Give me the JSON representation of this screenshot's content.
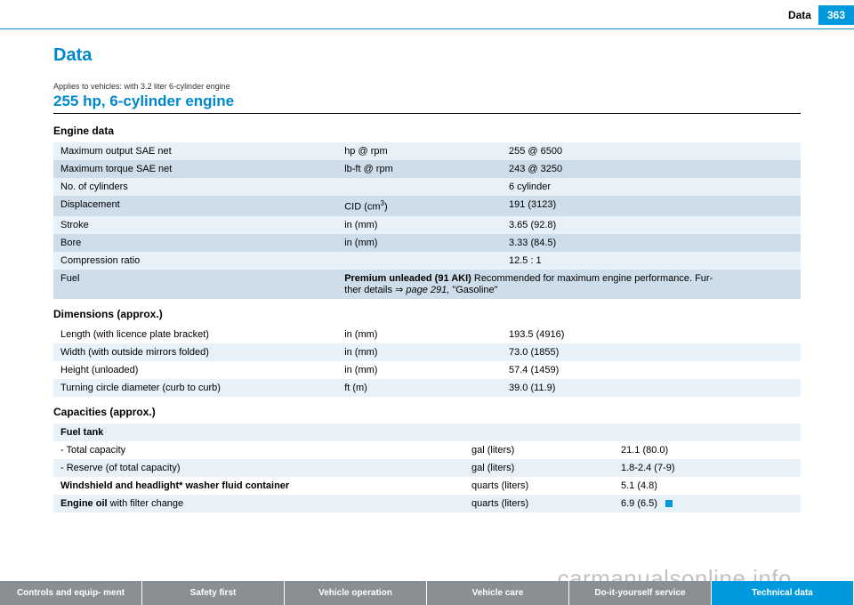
{
  "header": {
    "title": "Data",
    "page": "363"
  },
  "page": {
    "title": "Data",
    "applies": "Applies to vehicles: with 3.2 liter 6-cylinder engine",
    "subtitle": "255 hp, 6-cylinder engine"
  },
  "engine": {
    "heading": "Engine data",
    "rows": [
      {
        "label": "Maximum output SAE net",
        "unit": "hp @ rpm",
        "value": "255 @ 6500",
        "style": "light"
      },
      {
        "label": "Maximum torque SAE net",
        "unit": "lb-ft @ rpm",
        "value": "243 @ 3250",
        "style": "dark"
      },
      {
        "label": "No. of cylinders",
        "unit": "",
        "value": "6 cylinder",
        "style": "light"
      },
      {
        "label": "Displacement",
        "unit_html": "CID (cm<sup>3</sup>)",
        "value": "191 (3123)",
        "style": "dark"
      },
      {
        "label": "Stroke",
        "unit": "in (mm)",
        "value": "3.65 (92.8)",
        "style": "light"
      },
      {
        "label": "Bore",
        "unit": "in (mm)",
        "value": "3.33 (84.5)",
        "style": "dark"
      },
      {
        "label": "Compression ratio",
        "unit": "",
        "value": "12.5 : 1",
        "style": "light"
      }
    ],
    "fuel": {
      "label": "Fuel",
      "lead": "Premium unleaded (91 AKI)",
      "rest": " Recommended for maximum engine performance. Fur-",
      "line2a": "ther details ",
      "line2b": "page 291,",
      "line2c": " \"Gasoline\""
    }
  },
  "dimensions": {
    "heading": "Dimensions (approx.)",
    "rows": [
      {
        "label": "Length (with licence plate bracket)",
        "unit": "in (mm)",
        "value": "193.5 (4916)",
        "style": "plain"
      },
      {
        "label": "Width (with outside mirrors folded)",
        "unit": "in (mm)",
        "value": "73.0 (1855)",
        "style": "light"
      },
      {
        "label": "Height (unloaded)",
        "unit": "in (mm)",
        "value": "57.4 (1459)",
        "style": "plain"
      },
      {
        "label": "Turning circle diameter (curb to curb)",
        "unit": "ft (m)",
        "value": "39.0 (11.9)",
        "style": "light"
      }
    ]
  },
  "capacities": {
    "heading": "Capacities (approx.)",
    "fuel_tank": "Fuel tank",
    "rows": [
      {
        "label": "- Total capacity",
        "unit": "gal (liters)",
        "value": "21.1 (80.0)",
        "style": "plain"
      },
      {
        "label": "- Reserve (of total capacity)",
        "unit": "gal (liters)",
        "value": "1.8-2.4 (7-9)",
        "style": "light"
      }
    ],
    "windshield": {
      "label": "Windshield and headlight* washer fluid container",
      "unit": "quarts (liters)",
      "value": "5.1 (4.8)"
    },
    "oil": {
      "label_bold": "Engine oil",
      "label_rest": " with filter change",
      "unit": "quarts (liters)",
      "value": "6.9 (6.5)"
    }
  },
  "nav": {
    "items": [
      "Controls and equip-\nment",
      "Safety first",
      "Vehicle operation",
      "Vehicle care",
      "Do-it-yourself service",
      "Technical data"
    ]
  },
  "watermark": "carmanualsonline.info",
  "colors": {
    "accent": "#0099dd",
    "row_light": "#e8f1f7",
    "row_dark": "#cddde9",
    "nav_grey": "#8a8f94"
  }
}
